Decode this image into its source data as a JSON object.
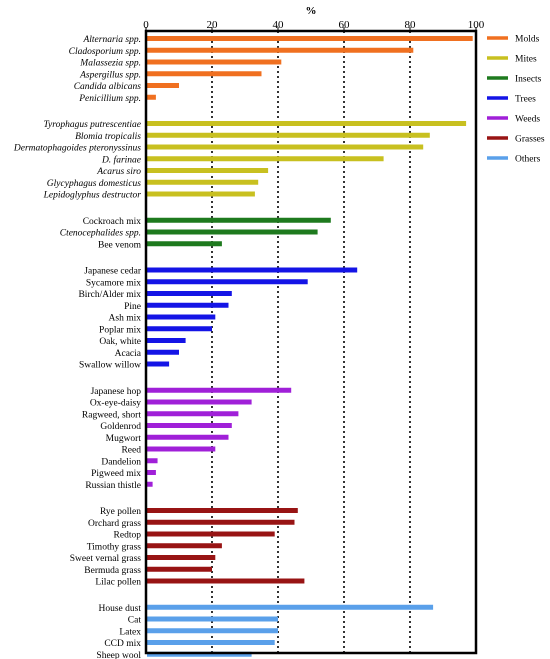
{
  "chart_data": {
    "type": "bar",
    "orientation": "horizontal",
    "xlabel": "%",
    "xlim": [
      0,
      100
    ],
    "xticks": [
      0,
      20,
      40,
      60,
      80,
      100
    ],
    "grid": "dotted vertical lines at 20, 40, 60, 80",
    "legend_position": "right",
    "legend": [
      {
        "name": "Molds",
        "color": "#F07020"
      },
      {
        "name": "Mites",
        "color": "#C8C020"
      },
      {
        "name": "Insects",
        "color": "#1E7A1E"
      },
      {
        "name": "Trees",
        "color": "#1414E6"
      },
      {
        "name": "Weeds",
        "color": "#A020D8"
      },
      {
        "name": "Grasses",
        "color": "#981414"
      },
      {
        "name": "Others",
        "color": "#5AA0EA"
      }
    ],
    "groups": [
      {
        "name": "Molds",
        "color": "#F07020",
        "items": [
          {
            "label": "Alternaria spp.",
            "value": 99,
            "italic": true
          },
          {
            "label": "Cladosporium spp.",
            "value": 81,
            "italic": true
          },
          {
            "label": "Malassezia spp.",
            "value": 41,
            "italic": true
          },
          {
            "label": "Aspergillus spp.",
            "value": 35,
            "italic": true
          },
          {
            "label": "Candida albicans",
            "value": 10,
            "italic": true
          },
          {
            "label": "Penicillium spp.",
            "value": 3,
            "italic": true
          }
        ]
      },
      {
        "name": "Mites",
        "color": "#C8C020",
        "items": [
          {
            "label": "Tyrophagus putrescentiae",
            "value": 97,
            "italic": true
          },
          {
            "label": "Blomia tropicalis",
            "value": 86,
            "italic": true
          },
          {
            "label": "Dermatophagoides pteronyssinus",
            "value": 84,
            "italic": true
          },
          {
            "label": "D. farinae",
            "value": 72,
            "italic": true
          },
          {
            "label": "Acarus siro",
            "value": 37,
            "italic": true
          },
          {
            "label": "Glycyphagus domesticus",
            "value": 34,
            "italic": true
          },
          {
            "label": "Lepidoglyphus destructor",
            "value": 33,
            "italic": true
          }
        ]
      },
      {
        "name": "Insects",
        "color": "#1E7A1E",
        "items": [
          {
            "label": "Cockroach mix",
            "value": 56,
            "italic": false
          },
          {
            "label": "Ctenocephalides spp.",
            "value": 52,
            "italic": true
          },
          {
            "label": "Bee venom",
            "value": 23,
            "italic": false
          }
        ]
      },
      {
        "name": "Trees",
        "color": "#1414E6",
        "items": [
          {
            "label": "Japanese cedar",
            "value": 64,
            "italic": false
          },
          {
            "label": "Sycamore mix",
            "value": 49,
            "italic": false
          },
          {
            "label": "Birch/Alder mix",
            "value": 26,
            "italic": false
          },
          {
            "label": "Pine",
            "value": 25,
            "italic": false
          },
          {
            "label": "Ash mix",
            "value": 21,
            "italic": false
          },
          {
            "label": "Poplar mix",
            "value": 20,
            "italic": false
          },
          {
            "label": "Oak, white",
            "value": 12,
            "italic": false
          },
          {
            "label": "Acacia",
            "value": 10,
            "italic": false
          },
          {
            "label": "Swallow willow",
            "value": 7,
            "italic": false
          }
        ]
      },
      {
        "name": "Weeds",
        "color": "#A020D8",
        "items": [
          {
            "label": "Japanese hop",
            "value": 44,
            "italic": false
          },
          {
            "label": "Ox-eye-daisy",
            "value": 32,
            "italic": false
          },
          {
            "label": "Ragweed, short",
            "value": 28,
            "italic": false
          },
          {
            "label": "Goldenrod",
            "value": 26,
            "italic": false
          },
          {
            "label": "Mugwort",
            "value": 25,
            "italic": false
          },
          {
            "label": "Reed",
            "value": 21,
            "italic": false
          },
          {
            "label": "Dandelion",
            "value": 3.5,
            "italic": false
          },
          {
            "label": "Pigweed mix",
            "value": 3,
            "italic": false
          },
          {
            "label": "Russian thistle",
            "value": 2,
            "italic": false
          }
        ]
      },
      {
        "name": "Grasses",
        "color": "#981414",
        "items": [
          {
            "label": "Rye pollen",
            "value": 46,
            "italic": false
          },
          {
            "label": "Orchard grass",
            "value": 45,
            "italic": false
          },
          {
            "label": "Redtop",
            "value": 39,
            "italic": false
          },
          {
            "label": "Timothy grass",
            "value": 23,
            "italic": false
          },
          {
            "label": "Sweet vernal grass",
            "value": 21,
            "italic": false
          },
          {
            "label": "Bermuda grass",
            "value": 20,
            "italic": false
          },
          {
            "label": "Lilac pollen",
            "value": 48,
            "italic": false
          }
        ]
      },
      {
        "name": "Others",
        "color": "#5AA0EA",
        "items": [
          {
            "label": "House dust",
            "value": 87,
            "italic": false
          },
          {
            "label": "Cat",
            "value": 40,
            "italic": false
          },
          {
            "label": "Latex",
            "value": 40,
            "italic": false
          },
          {
            "label": "CCD mix",
            "value": 39,
            "italic": false
          },
          {
            "label": "Sheep wool",
            "value": 32,
            "italic": false
          }
        ]
      }
    ]
  }
}
